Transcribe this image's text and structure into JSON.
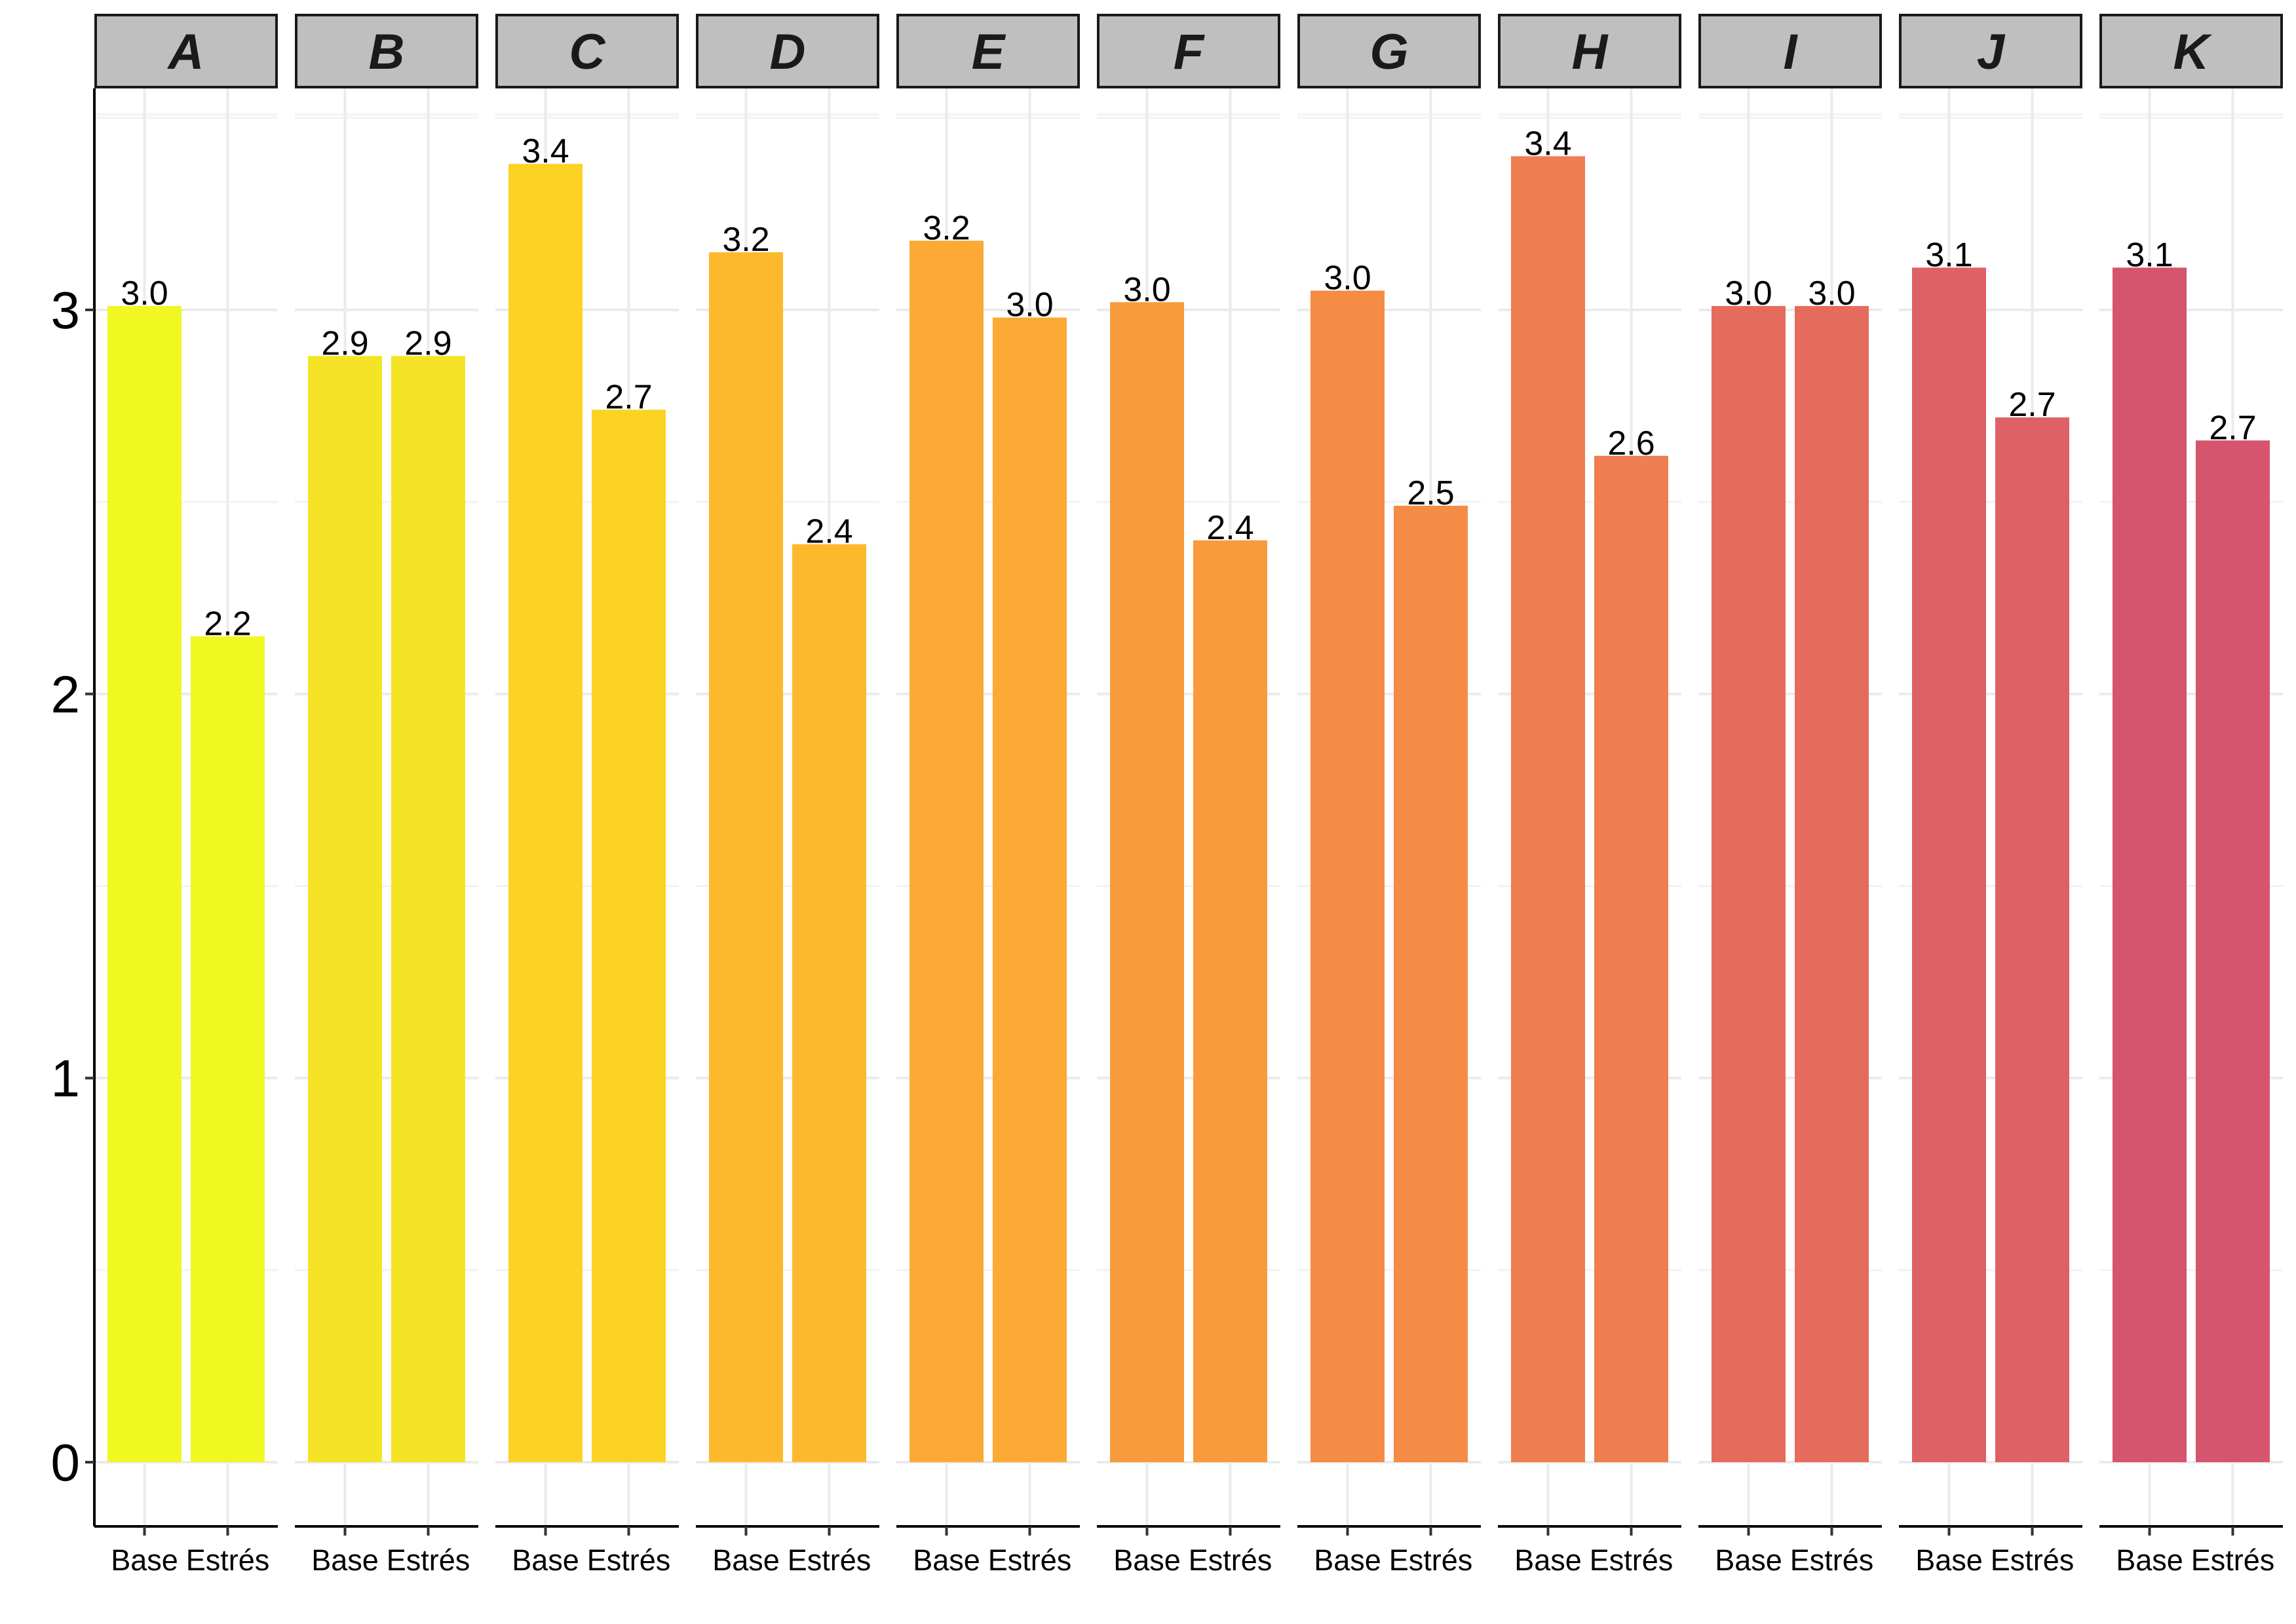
{
  "chart_data": {
    "type": "bar",
    "facets": [
      "A",
      "B",
      "C",
      "D",
      "E",
      "F",
      "G",
      "H",
      "I",
      "J",
      "K"
    ],
    "categories": [
      "Base",
      "Estrés"
    ],
    "values": [
      [
        3.01,
        2.15
      ],
      [
        2.88,
        2.88
      ],
      [
        3.38,
        2.74
      ],
      [
        3.15,
        2.39
      ],
      [
        3.18,
        2.98
      ],
      [
        3.02,
        2.4
      ],
      [
        3.05,
        2.49
      ],
      [
        3.4,
        2.62
      ],
      [
        3.01,
        3.01
      ],
      [
        3.11,
        2.72
      ],
      [
        3.11,
        2.66
      ]
    ],
    "data_labels": [
      [
        "3.0",
        "2.2"
      ],
      [
        "2.9",
        "2.9"
      ],
      [
        "3.4",
        "2.7"
      ],
      [
        "3.2",
        "2.4"
      ],
      [
        "3.2",
        "3.0"
      ],
      [
        "3.0",
        "2.4"
      ],
      [
        "3.0",
        "2.5"
      ],
      [
        "3.4",
        "2.6"
      ],
      [
        "3.0",
        "3.0"
      ],
      [
        "3.1",
        "2.7"
      ],
      [
        "3.1",
        "2.7"
      ]
    ],
    "facet_colors": [
      "#f1f721",
      "#f5e425",
      "#fcd225",
      "#fdb92e",
      "#fca935",
      "#f99b3c",
      "#f58b44",
      "#ef7e50",
      "#e56b5d",
      "#de6165",
      "#d5546e"
    ],
    "title": "",
    "xlabel": "",
    "ylabel": "",
    "ylim": [
      0,
      3.6
    ],
    "yticks": [
      0,
      1,
      2,
      3
    ],
    "ytick_labels": [
      "0",
      "1",
      "2",
      "3"
    ],
    "grid": true,
    "legend": "none"
  }
}
